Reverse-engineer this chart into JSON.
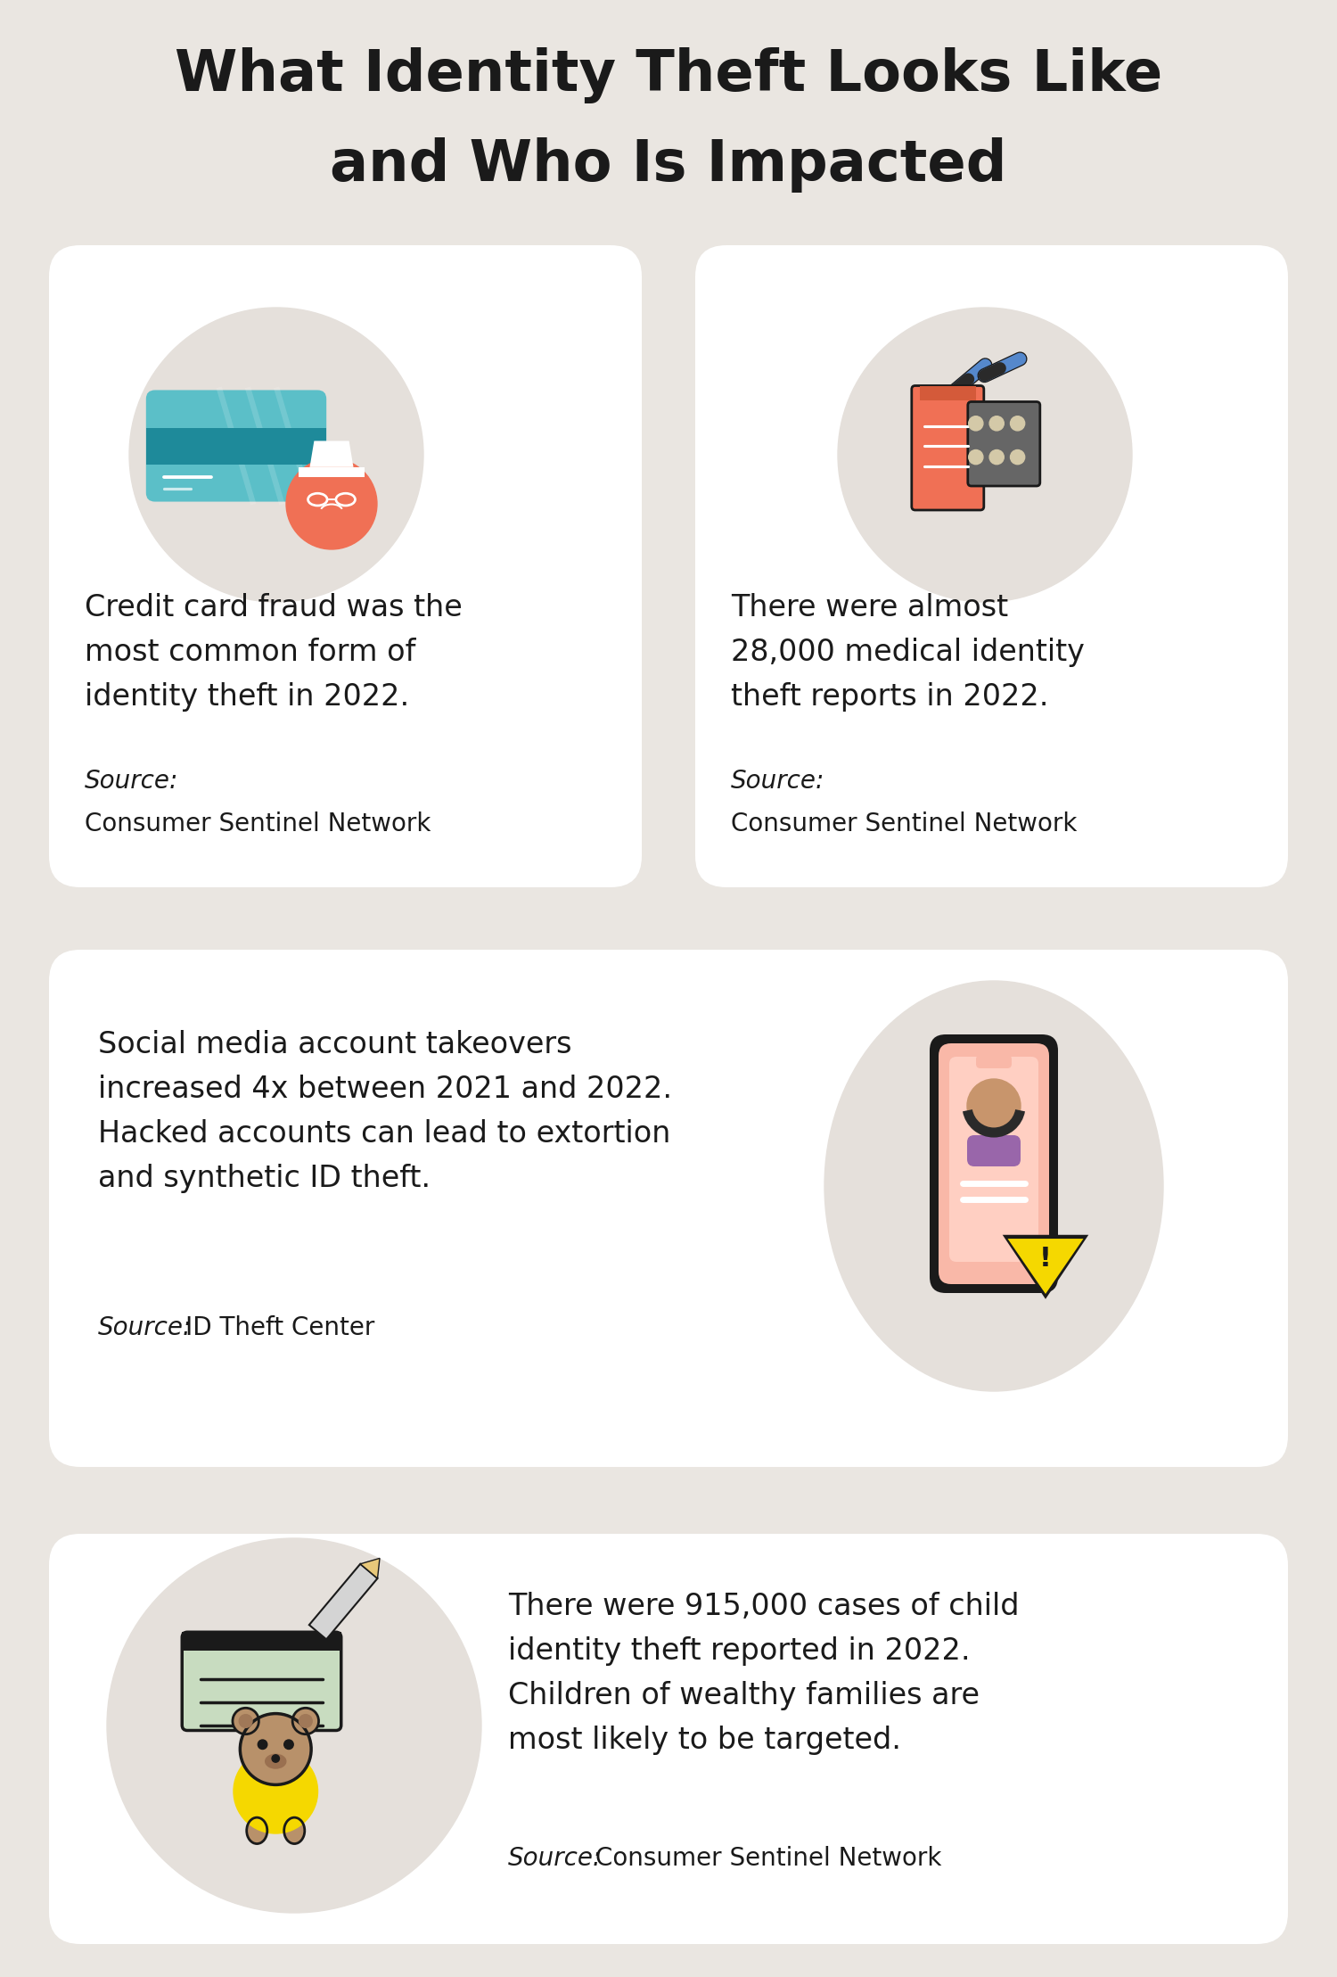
{
  "background_color": "#eae6e1",
  "card_color": "#ffffff",
  "title_line1": "What Identity Theft Looks Like",
  "title_line2": "and Who Is Impacted",
  "title_fontsize": 46,
  "title_color": "#1a1a1a",
  "card1_text": "Credit card fraud was the\nmost common form of\nidentity theft in 2022.",
  "card1_source_label": "Source:",
  "card1_source": "\nConsumer Sentinel Network",
  "card2_text": "There were almost\n28,000 medical identity\ntheft reports in 2022.",
  "card2_source_label": "Source:",
  "card2_source": "\nConsumer Sentinel Network",
  "card3_text": "Social media account takeovers\nincreased 4x between 2021 and 2022.\nHacked accounts can lead to extortion\nand synthetic ID theft.",
  "card3_source_label": "Source:",
  "card3_source": " ID Theft Center",
  "card4_text": "There were 915,000 cases of child\nidentity theft reported in 2022.\nChildren of wealthy families are\nmost likely to be targeted.",
  "card4_source_label": "Source:",
  "card4_source": " Consumer Sentinel Network",
  "text_color": "#1a1a1a",
  "text_fontsize": 24,
  "source_fontsize": 20,
  "icon_bg_color": "#e5e0db"
}
